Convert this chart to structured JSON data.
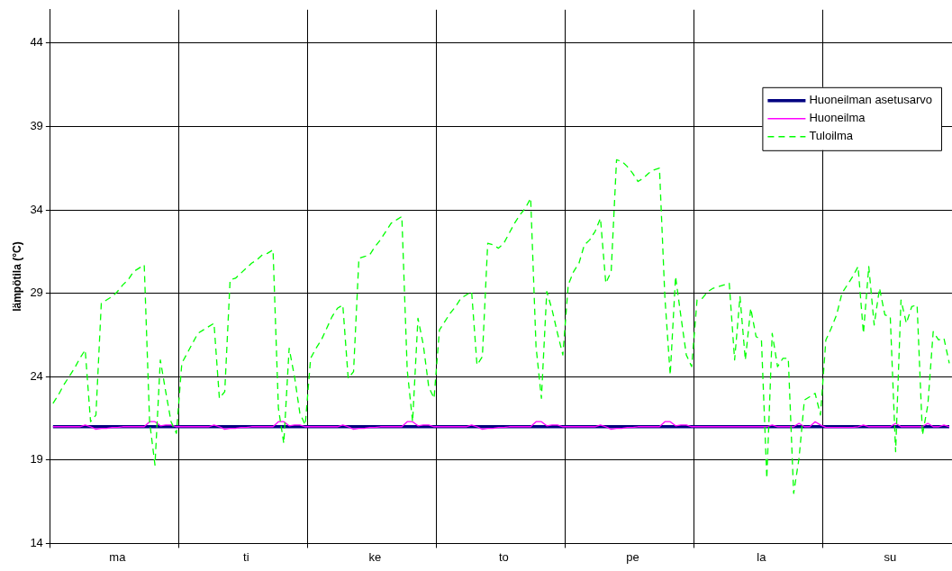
{
  "chart_data": {
    "type": "line",
    "ylabel": "lämpötila (°C)",
    "categories": [
      null,
      null,
      null,
      null,
      null,
      null,
      null,
      null,
      null,
      null,
      null,
      null,
      "ma",
      null,
      null,
      null,
      null,
      null,
      null,
      null,
      null,
      null,
      null,
      null,
      null,
      null,
      null,
      null,
      null,
      null,
      null,
      null,
      null,
      null,
      null,
      null,
      "ti",
      null,
      null,
      null,
      null,
      null,
      null,
      null,
      null,
      null,
      null,
      null,
      null,
      null,
      null,
      null,
      null,
      null,
      null,
      null,
      null,
      null,
      null,
      null,
      "ke",
      null,
      null,
      null,
      null,
      null,
      null,
      null,
      null,
      null,
      null,
      null,
      null,
      null,
      null,
      null,
      null,
      null,
      null,
      null,
      null,
      null,
      null,
      null,
      "to",
      null,
      null,
      null,
      null,
      null,
      null,
      null,
      null,
      null,
      null,
      null,
      null,
      null,
      null,
      null,
      null,
      null,
      null,
      null,
      null,
      null,
      null,
      null,
      "pe",
      null,
      null,
      null,
      null,
      null,
      null,
      null,
      null,
      null,
      null,
      null,
      null,
      null,
      null,
      null,
      null,
      null,
      null,
      null,
      null,
      null,
      null,
      null,
      "la",
      null,
      null,
      null,
      null,
      null,
      null,
      null,
      null,
      null,
      null,
      null,
      null,
      null,
      null,
      null,
      null,
      null,
      null,
      null,
      null,
      null,
      null,
      null,
      "su",
      null,
      null,
      null,
      null,
      null,
      null,
      null,
      null,
      null,
      null,
      null
    ],
    "ylim": [
      14,
      46
    ],
    "yticks": [
      14,
      19,
      24,
      29,
      34,
      39,
      44
    ],
    "grid": true,
    "legend": "top right",
    "marker": "none",
    "series": [
      {
        "name": "Huoneilman asetusarvo",
        "color": "#000080",
        "line_style": "solid",
        "values": [
          21,
          21,
          21,
          21,
          21,
          21,
          21,
          21,
          21,
          21,
          21,
          21,
          21,
          21,
          21,
          21,
          21,
          21,
          21,
          21,
          21,
          21,
          21,
          21,
          21,
          21,
          21,
          21,
          21,
          21,
          21,
          21,
          21,
          21,
          21,
          21,
          21,
          21,
          21,
          21,
          21,
          21,
          21,
          21,
          21,
          21,
          21,
          21,
          21,
          21,
          21,
          21,
          21,
          21,
          21,
          21,
          21,
          21,
          21,
          21,
          21,
          21,
          21,
          21,
          21,
          21,
          21,
          21,
          21,
          21,
          21,
          21,
          21,
          21,
          21,
          21,
          21,
          21,
          21,
          21,
          21,
          21,
          21,
          21,
          21,
          21,
          21,
          21,
          21,
          21,
          21,
          21,
          21,
          21,
          21,
          21,
          21,
          21,
          21,
          21,
          21,
          21,
          21,
          21,
          21,
          21,
          21,
          21,
          21,
          21,
          21,
          21,
          21,
          21,
          21,
          21,
          21,
          21,
          21,
          21,
          21,
          21,
          21,
          21,
          21,
          21,
          21,
          21,
          21,
          21,
          21,
          21,
          21,
          21,
          21,
          21,
          21,
          21,
          21,
          21,
          21,
          21,
          21,
          21,
          21,
          21,
          21,
          21,
          21,
          21,
          21,
          21,
          21,
          21,
          21,
          21,
          21,
          21,
          21,
          21,
          21,
          21,
          21,
          21,
          21,
          21,
          21,
          21
        ]
      },
      {
        "name": "Huoneilma",
        "color": "#ff00ff",
        "line_style": "solid",
        "values": [
          21.0,
          21.0,
          21.0,
          21.0,
          21.0,
          21.0,
          21.1,
          21.0,
          20.85,
          20.9,
          20.9,
          20.95,
          20.95,
          21.0,
          21.0,
          21.0,
          21.0,
          21.0,
          21.3,
          21.3,
          21.05,
          21.1,
          21.1,
          21.0,
          21.0,
          21.0,
          21.0,
          21.0,
          21.0,
          21.0,
          21.1,
          21.0,
          20.85,
          20.9,
          20.9,
          20.95,
          20.95,
          21.0,
          21.0,
          21.0,
          21.0,
          21.0,
          21.3,
          21.3,
          21.05,
          21.1,
          21.1,
          21.0,
          21.0,
          21.0,
          21.0,
          21.0,
          21.0,
          21.0,
          21.1,
          21.0,
          20.85,
          20.9,
          20.9,
          20.95,
          20.95,
          21.0,
          21.0,
          21.0,
          21.0,
          21.0,
          21.3,
          21.3,
          21.05,
          21.1,
          21.1,
          21.0,
          21.0,
          21.0,
          21.0,
          21.0,
          21.0,
          21.0,
          21.1,
          21.0,
          20.85,
          20.9,
          20.9,
          20.95,
          20.95,
          21.0,
          21.0,
          21.0,
          21.0,
          21.0,
          21.3,
          21.3,
          21.05,
          21.1,
          21.1,
          21.0,
          21.0,
          21.0,
          21.0,
          21.0,
          21.0,
          21.0,
          21.1,
          21.0,
          20.85,
          20.9,
          20.9,
          20.95,
          20.95,
          21.0,
          21.0,
          21.0,
          21.0,
          21.0,
          21.3,
          21.3,
          21.05,
          21.1,
          21.1,
          21.0,
          21.0,
          21.0,
          21.0,
          21.0,
          21.0,
          21.0,
          21.0,
          21.0,
          21.0,
          21.0,
          21.0,
          21.0,
          21.0,
          21.0,
          21.1,
          21.0,
          21.0,
          21.0,
          21.0,
          21.2,
          21.0,
          21.0,
          21.3,
          21.1,
          20.95,
          20.95,
          20.95,
          20.95,
          20.95,
          20.95,
          21.0,
          21.1,
          21.0,
          21.0,
          21.0,
          21.0,
          21.0,
          21.2,
          21.0,
          21.0,
          21.0,
          21.0,
          21.0,
          21.2,
          21.0,
          21.0,
          21.1,
          21.0
        ]
      },
      {
        "name": "Tuloilma",
        "color": "#00ff00",
        "line_style": "dashed",
        "values": [
          22.4,
          22.9,
          23.5,
          24.0,
          24.5,
          25.1,
          25.6,
          21.3,
          21.7,
          28.4,
          28.6,
          28.8,
          29.1,
          29.5,
          29.8,
          30.3,
          30.5,
          30.7,
          21.3,
          18.7,
          25.0,
          23.1,
          21.3,
          20.6,
          24.8,
          25.4,
          26.0,
          26.6,
          26.8,
          27.0,
          27.2,
          22.7,
          23.1,
          29.8,
          29.9,
          30.2,
          30.5,
          30.8,
          31.0,
          31.3,
          31.4,
          31.6,
          22.1,
          20.0,
          25.7,
          24.0,
          21.8,
          21.1,
          25.1,
          25.7,
          26.2,
          26.9,
          27.6,
          28.1,
          28.3,
          23.9,
          24.3,
          31.1,
          31.2,
          31.3,
          31.8,
          32.2,
          32.7,
          33.2,
          33.4,
          33.6,
          24.4,
          21.3,
          27.5,
          25.9,
          23.4,
          22.7,
          26.8,
          27.3,
          27.8,
          28.2,
          28.7,
          28.9,
          29.1,
          24.7,
          25.2,
          32.0,
          31.9,
          31.7,
          32.0,
          32.6,
          33.2,
          33.7,
          34.1,
          34.7,
          25.8,
          22.7,
          29.1,
          28.0,
          26.6,
          25.3,
          29.5,
          30.3,
          30.8,
          31.9,
          32.2,
          32.7,
          33.5,
          29.6,
          30.3,
          37.0,
          36.9,
          36.6,
          36.2,
          35.7,
          35.9,
          36.2,
          36.4,
          36.5,
          28.8,
          24.1,
          30.0,
          27.6,
          25.3,
          24.6,
          28.6,
          28.7,
          29.1,
          29.3,
          29.4,
          29.5,
          29.6,
          25.0,
          28.8,
          25.0,
          28.1,
          26.4,
          26.2,
          17.9,
          26.6,
          24.6,
          25.1,
          25.1,
          17.0,
          19.1,
          22.6,
          22.8,
          23.0,
          21.7,
          26.2,
          26.9,
          27.7,
          29.0,
          29.5,
          30.0,
          30.6,
          26.6,
          30.6,
          27.1,
          29.3,
          27.7,
          27.6,
          19.5,
          28.6,
          27.2,
          28.2,
          28.3,
          20.5,
          22.3,
          26.7,
          26.2,
          26.3,
          24.8
        ]
      }
    ]
  }
}
